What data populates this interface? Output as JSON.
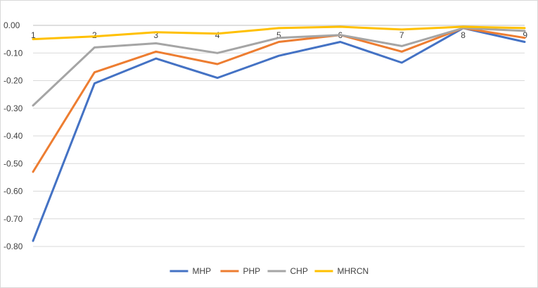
{
  "chart_data": {
    "type": "line",
    "categories": [
      "1",
      "2",
      "3",
      "4",
      "5",
      "6",
      "7",
      "8",
      "9"
    ],
    "ylim": [
      -0.8,
      0.0
    ],
    "yticks": [
      "0.00",
      "-0.10",
      "-0.20",
      "-0.30",
      "-0.40",
      "-0.50",
      "-0.60",
      "-0.70",
      "-0.80"
    ],
    "grid": true,
    "legend_position": "bottom",
    "series": [
      {
        "name": "MHP",
        "color": "#4472c4",
        "values": [
          -0.78,
          -0.21,
          -0.12,
          -0.19,
          -0.11,
          -0.06,
          -0.135,
          -0.01,
          -0.06
        ]
      },
      {
        "name": "PHP",
        "color": "#ed7d31",
        "values": [
          -0.53,
          -0.17,
          -0.095,
          -0.14,
          -0.06,
          -0.035,
          -0.095,
          -0.01,
          -0.045
        ]
      },
      {
        "name": "CHP",
        "color": "#a5a5a5",
        "values": [
          -0.29,
          -0.08,
          -0.065,
          -0.1,
          -0.045,
          -0.035,
          -0.075,
          -0.01,
          -0.02
        ]
      },
      {
        "name": "MHRCN",
        "color": "#ffc000",
        "values": [
          -0.05,
          -0.04,
          -0.025,
          -0.03,
          -0.01,
          -0.005,
          -0.015,
          -0.005,
          -0.01
        ]
      }
    ]
  }
}
